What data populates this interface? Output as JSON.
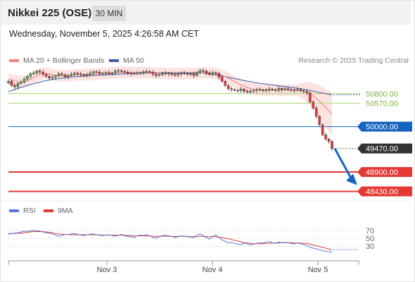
{
  "header": {
    "title": "Nikkei 225 (OSE)",
    "timeframe": "30 MIN"
  },
  "timestamp": "Wednesday, November 5, 2025 4:26:58 AM CET",
  "legend": {
    "ma20_bb": "MA 20 + Bollinger Bands",
    "ma50": "MA 50",
    "rsi": "RSI",
    "ma9": "9MA"
  },
  "credit": "Research © 2025 Trading Central",
  "colors": {
    "bull": "#4caf50",
    "bear": "#e53935",
    "ma20": "#f08080",
    "bands": "#fde2e2",
    "ma50": "#3b5ba5",
    "resistance": "#a5d66f",
    "support_blue": "#1565c0",
    "support_red": "#e53935",
    "current": "#333333",
    "rsi": "#5577dd",
    "rsi_ma": "#e53935"
  },
  "chart_data": [
    {
      "type": "candlestick",
      "x_ticks": [
        "Nov 3",
        "Nov 4",
        "Nov 5"
      ],
      "ylim": [
        48250,
        51600
      ],
      "series": {
        "close": [
          51100,
          51000,
          50960,
          51050,
          51080,
          51150,
          51220,
          51280,
          51300,
          51350,
          51320,
          51270,
          51220,
          51180,
          51200,
          51230,
          51280,
          51260,
          51210,
          51240,
          51270,
          51300,
          51280,
          51260,
          51230,
          51270,
          51300,
          51330,
          51320,
          51290,
          51300,
          51310,
          51280,
          51300,
          51350,
          51360,
          51340,
          51320,
          51300,
          51280,
          51290,
          51300,
          51310,
          51330,
          51340,
          51320,
          51270,
          51240,
          51260,
          51290,
          51300,
          51280,
          51260,
          51250,
          51280,
          51300,
          51290,
          51270,
          51280,
          51240,
          51320,
          51360,
          51350,
          51300,
          51260,
          51310,
          51290,
          51200,
          51100,
          51000,
          50920,
          50900,
          50880,
          50870,
          50910,
          50860,
          50840,
          50860,
          50880,
          50900,
          50890,
          50870,
          50890,
          50910,
          50890,
          50880,
          50930,
          50900,
          50920,
          50900,
          50890,
          50880,
          50900,
          50870,
          50850,
          50820,
          50600,
          50450,
          50250,
          50050,
          49800,
          49700,
          49640,
          49470
        ],
        "ma20": [
          51150,
          51130,
          51110,
          51090,
          51080,
          51090,
          51110,
          51150,
          51190,
          51230,
          51270,
          51290,
          51290,
          51280,
          51260,
          51240,
          51230,
          51230,
          51230,
          51230,
          51240,
          51250,
          51260,
          51260,
          51260,
          51260,
          51265,
          51270,
          51275,
          51280,
          51285,
          51290,
          51295,
          51300,
          51305,
          51310,
          51315,
          51315,
          51315,
          51315,
          51310,
          51310,
          51310,
          51310,
          51310,
          51310,
          51305,
          51300,
          51295,
          51290,
          51285,
          51285,
          51285,
          51285,
          51285,
          51285,
          51285,
          51285,
          51285,
          51285,
          51290,
          51300,
          51305,
          51305,
          51300,
          51300,
          51290,
          51270,
          51240,
          51210,
          51170,
          51130,
          51090,
          51050,
          51010,
          50980,
          50950,
          50930,
          50910,
          50900,
          50895,
          50890,
          50885,
          50885,
          50885,
          50885,
          50885,
          50885,
          50885,
          50885,
          50885,
          50885,
          50885,
          50875,
          50860,
          50840,
          50800,
          50750,
          50690,
          50620,
          50540,
          50460,
          50380,
          50300
        ],
        "ma50": [
          50850,
          50875,
          50900,
          50925,
          50950,
          50975,
          51000,
          51020,
          51040,
          51060,
          51080,
          51100,
          51115,
          51130,
          51145,
          51155,
          51165,
          51175,
          51185,
          51195,
          51200,
          51210,
          51215,
          51220,
          51225,
          51230,
          51235,
          51240,
          51245,
          51248,
          51252,
          51256,
          51260,
          51264,
          51268,
          51272,
          51276,
          51280,
          51283,
          51286,
          51289,
          51292,
          51295,
          51298,
          51300,
          51302,
          51304,
          51305,
          51305,
          51305,
          51305,
          51305,
          51305,
          51305,
          51305,
          51305,
          51305,
          51305,
          51305,
          51305,
          51305,
          51305,
          51300,
          51290,
          51280,
          51270,
          51255,
          51240,
          51225,
          51210,
          51195,
          51180,
          51165,
          51150,
          51135,
          51120,
          51105,
          51090,
          51075,
          51060,
          51050,
          51040,
          51030,
          51020,
          51010,
          51000,
          50990,
          50980,
          50970,
          50960,
          50950,
          50940,
          50930,
          50920,
          50905,
          50890,
          50875,
          50860,
          50845,
          50830,
          50815,
          50800,
          50785,
          50770
        ]
      },
      "levels": [
        {
          "label": "50800.00",
          "value": 50800,
          "kind": "resistance"
        },
        {
          "label": "50570.00",
          "value": 50570,
          "kind": "resistance"
        },
        {
          "label": "50000.00",
          "value": 50000,
          "kind": "pivot"
        },
        {
          "label": "49470.00",
          "value": 49470,
          "kind": "last_price"
        },
        {
          "label": "48900.00",
          "value": 48900,
          "kind": "support"
        },
        {
          "label": "48430.00",
          "value": 48430,
          "kind": "support"
        }
      ]
    },
    {
      "type": "line",
      "name": "RSI",
      "ylim": [
        0,
        100
      ],
      "y_ticks": [
        70,
        50,
        30
      ],
      "series": [
        {
          "name": "RSI",
          "values": [
            60,
            62,
            63,
            64,
            66,
            68,
            67,
            69,
            70,
            69,
            68,
            66,
            64,
            63,
            62,
            58,
            55,
            57,
            60,
            59,
            61,
            62,
            60,
            58,
            57,
            59,
            60,
            61,
            59,
            58,
            57,
            58,
            59,
            57,
            55,
            58,
            60,
            56,
            55,
            54,
            52,
            56,
            58,
            57,
            59,
            56,
            52,
            50,
            54,
            57,
            58,
            56,
            55,
            52,
            54,
            56,
            55,
            54,
            53,
            52,
            58,
            61,
            57,
            52,
            48,
            55,
            58,
            52,
            46,
            42,
            38,
            40,
            37,
            35,
            34,
            38,
            36,
            33,
            35,
            37,
            39,
            38,
            40,
            42,
            39,
            37,
            41,
            38,
            40,
            39,
            37,
            36,
            38,
            36,
            34,
            32,
            27,
            25,
            23,
            21,
            19,
            17,
            16,
            15
          ]
        },
        {
          "name": "9MA",
          "values": [
            62,
            62,
            62,
            63,
            63,
            64,
            65,
            66,
            67,
            67,
            67,
            67,
            66,
            65,
            64,
            62,
            61,
            60,
            60,
            59,
            59,
            59,
            59,
            59,
            59,
            59,
            59,
            59,
            59,
            59,
            58,
            58,
            58,
            58,
            58,
            58,
            58,
            58,
            57,
            57,
            56,
            56,
            56,
            56,
            56,
            56,
            55,
            55,
            55,
            55,
            55,
            55,
            55,
            55,
            55,
            55,
            55,
            55,
            54,
            54,
            54,
            55,
            55,
            55,
            54,
            54,
            54,
            53,
            52,
            50,
            49,
            47,
            45,
            43,
            41,
            39,
            38,
            37,
            36,
            36,
            36,
            36,
            37,
            37,
            38,
            38,
            38,
            39,
            39,
            39,
            39,
            38,
            38,
            38,
            37,
            37,
            35,
            33,
            31,
            29,
            27,
            25,
            23,
            21
          ]
        }
      ]
    }
  ]
}
